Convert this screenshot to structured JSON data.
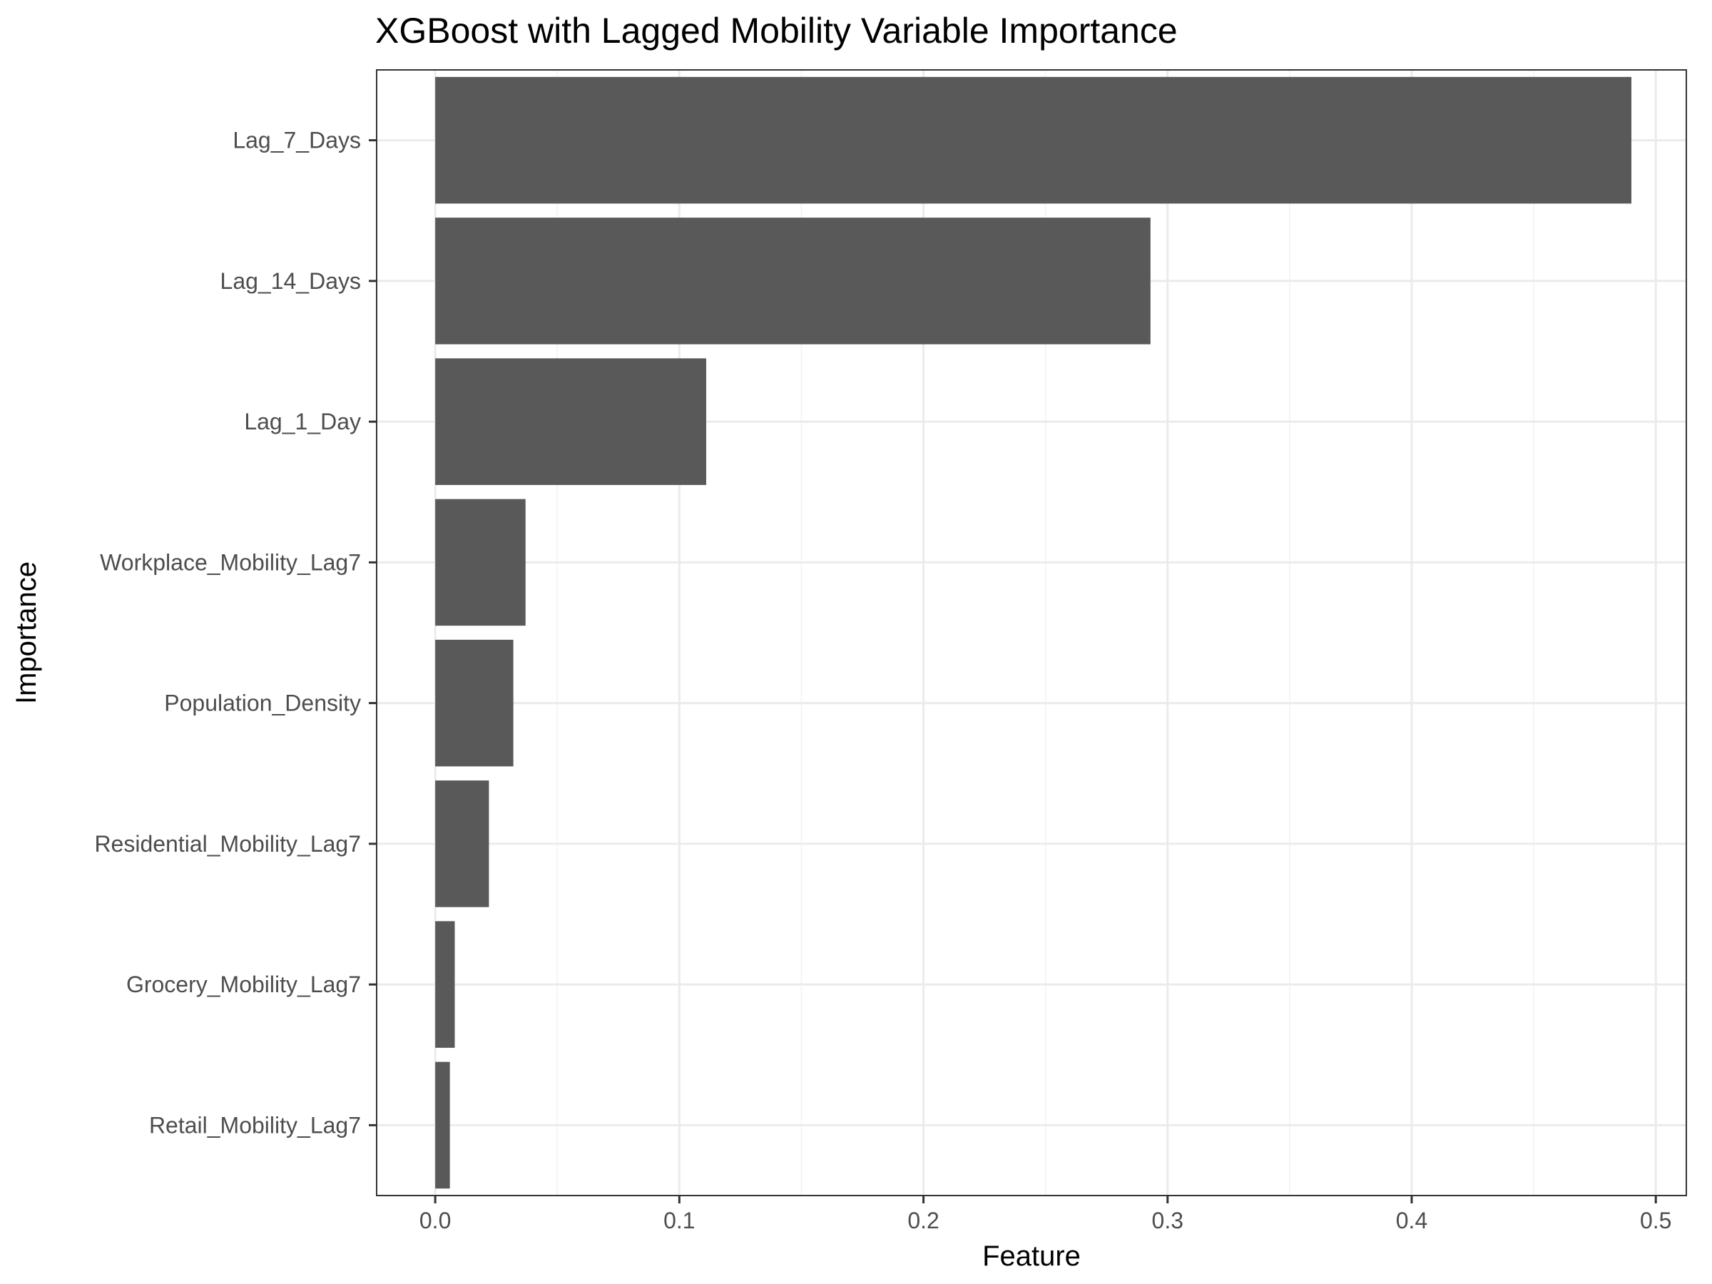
{
  "chart_data": {
    "type": "bar",
    "orientation": "horizontal",
    "title": "XGBoost with Lagged Mobility Variable Importance",
    "xlabel": "Feature",
    "ylabel": "Importance",
    "categories": [
      "Lag_7_Days",
      "Lag_14_Days",
      "Lag_1_Day",
      "Workplace_Mobility_Lag7",
      "Population_Density",
      "Residential_Mobility_Lag7",
      "Grocery_Mobility_Lag7",
      "Retail_Mobility_Lag7"
    ],
    "values": [
      0.49,
      0.293,
      0.111,
      0.037,
      0.032,
      0.022,
      0.008,
      0.006
    ],
    "xlim": [
      -0.024,
      0.5125
    ],
    "xticks": [
      0.0,
      0.1,
      0.2,
      0.3,
      0.4,
      0.5
    ],
    "xtick_labels": [
      "0.0",
      "0.1",
      "0.2",
      "0.3",
      "0.4",
      "0.5"
    ],
    "grid": true,
    "legend": "none",
    "colors": {
      "bar": "#595959",
      "grid_major": "#ebebeb",
      "grid_minor": "#f2f2f2",
      "panel_border": "#333333",
      "tick_text": "#4d4d4d"
    }
  }
}
